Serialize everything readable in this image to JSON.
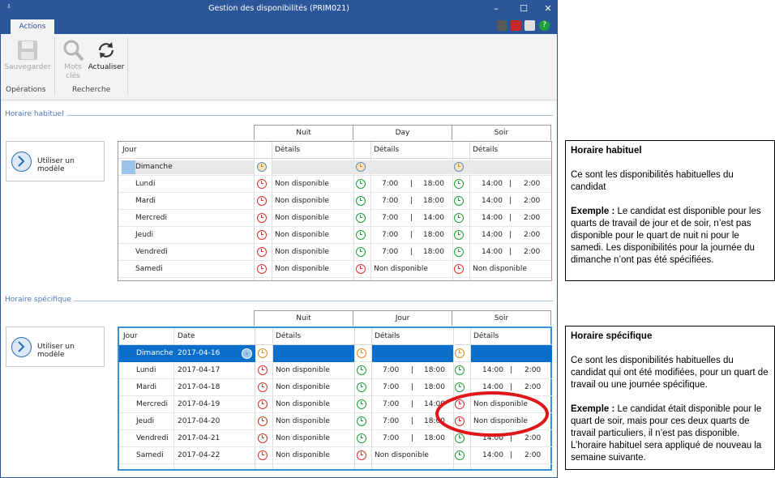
{
  "window": {
    "title": "Gestion des disponibilités (PRIM021)",
    "qa": "⇩"
  },
  "ribbon": {
    "tab": "Actions",
    "save_label": "Sauvegarder",
    "keywords_label1": "Mots",
    "keywords_label2": "clés",
    "refresh_label": "Actualiser",
    "group_ops": "Opérations",
    "group_search": "Recherche"
  },
  "habituel": {
    "section_title": "Horaire habituel",
    "model_button": "Utiliser un modèle",
    "groups": [
      "Nuit",
      "Day",
      "Soir"
    ],
    "col_day": "Jour",
    "col_details": "Détails",
    "rows": [
      {
        "day": "Dimanche",
        "n": "",
        "d1": "",
        "d2": "",
        "s1": "",
        "s2": "",
        "nc": "blu",
        "dc": "blu",
        "sc": "blu",
        "nd": false,
        "dd": false,
        "sd": false
      },
      {
        "day": "Lundi",
        "n": "Non disponible",
        "d1": "7:00",
        "d2": "18:00",
        "s1": "14:00",
        "s2": "2:00",
        "nc": "red",
        "dc": "grn",
        "sc": "grn"
      },
      {
        "day": "Mardi",
        "n": "Non disponible",
        "d1": "7:00",
        "d2": "18:00",
        "s1": "14:00",
        "s2": "2:00",
        "nc": "red",
        "dc": "grn",
        "sc": "grn"
      },
      {
        "day": "Mercredi",
        "n": "Non disponible",
        "d1": "7:00",
        "d2": "14:00",
        "s1": "14:00",
        "s2": "2:00",
        "nc": "red",
        "dc": "grn",
        "sc": "grn"
      },
      {
        "day": "Jeudi",
        "n": "Non disponible",
        "d1": "7:00",
        "d2": "18:00",
        "s1": "14:00",
        "s2": "2:00",
        "nc": "red",
        "dc": "grn",
        "sc": "grn"
      },
      {
        "day": "Vendredi",
        "n": "Non disponible",
        "d1": "7:00",
        "d2": "18:00",
        "s1": "14:00",
        "s2": "2:00",
        "nc": "red",
        "dc": "grn",
        "sc": "grn"
      },
      {
        "day": "Samedi",
        "n": "Non disponible",
        "dtext": "Non disponible",
        "stext": "Non disponible",
        "nc": "red",
        "dc": "red",
        "sc": "red"
      }
    ]
  },
  "specifique": {
    "section_title": "Horaire spécifique",
    "model_button": "Utiliser un modèle",
    "groups": [
      "Nuit",
      "Jour",
      "Soir"
    ],
    "col_day": "Jour",
    "col_date": "Date",
    "col_details": "Détails",
    "rows": [
      {
        "day": "Dimanche",
        "date": "2017-04-16",
        "n": "",
        "d1": "",
        "d2": "",
        "s1": "",
        "s2": "",
        "nc": "ora",
        "dc": "ora",
        "sc": "ora"
      },
      {
        "day": "Lundi",
        "date": "2017-04-17",
        "n": "Non disponible",
        "d1": "7:00",
        "d2": "18:00",
        "s1": "14:00",
        "s2": "2:00",
        "nc": "red",
        "dc": "grn",
        "sc": "grn"
      },
      {
        "day": "Mardi",
        "date": "2017-04-18",
        "n": "Non disponible",
        "d1": "7:00",
        "d2": "18:00",
        "s1": "14:00",
        "s2": "2:00",
        "nc": "red",
        "dc": "grn",
        "sc": "grn"
      },
      {
        "day": "Mercredi",
        "date": "2017-04-19",
        "n": "Non disponible",
        "d1": "7:00",
        "d2": "14:00",
        "stext": "Non disponible",
        "nc": "red",
        "dc": "grn",
        "sc": "red"
      },
      {
        "day": "Jeudi",
        "date": "2017-04-20",
        "n": "Non disponible",
        "d1": "7:00",
        "d2": "18:00",
        "stext": "Non disponible",
        "nc": "red",
        "dc": "grn",
        "sc": "red"
      },
      {
        "day": "Vendredi",
        "date": "2017-04-21",
        "n": "Non disponible",
        "d1": "7:00",
        "d2": "18:00",
        "s1": "14:00",
        "s2": "2:00",
        "nc": "red",
        "dc": "grn",
        "sc": "grn"
      },
      {
        "day": "Samedi",
        "date": "2017-04-22",
        "n": "Non disponible",
        "dtext": "Non disponible",
        "s1": "14:00",
        "s2": "2:00",
        "nc": "red",
        "dc": "red",
        "sc": "grn"
      }
    ]
  },
  "annotations": {
    "a1_title": "Horaire habituel",
    "a1_p1": "Ce sont les disponibilités habituelles du candidat",
    "a1_ex_label": "Exemple :",
    "a1_ex": " Le candidat est disponible pour les quarts de travail de jour et de soir, n’est pas disponible pour le quart de nuit ni pour le samedi. Les disponibilités pour la journée du dimanche n’ont pas été spécifiées.",
    "a2_title": "Horaire spécifique",
    "a2_p1": "Ce sont les disponibilités habituelles du candidat qui ont été modifiées, pour un quart de travail ou une journée spécifique.",
    "a2_ex_label": "Exemple :",
    "a2_ex": " Le candidat était disponible pour le quart de soir, mais pour ces deux quarts de travail particuliers, il n’est pas disponible. L’horaire habituel sera appliqué de nouveau la semaine suivante."
  },
  "colors": {
    "accent": "#2b579a",
    "selection": "#0a6ecb",
    "highlight": "#e0161b"
  }
}
